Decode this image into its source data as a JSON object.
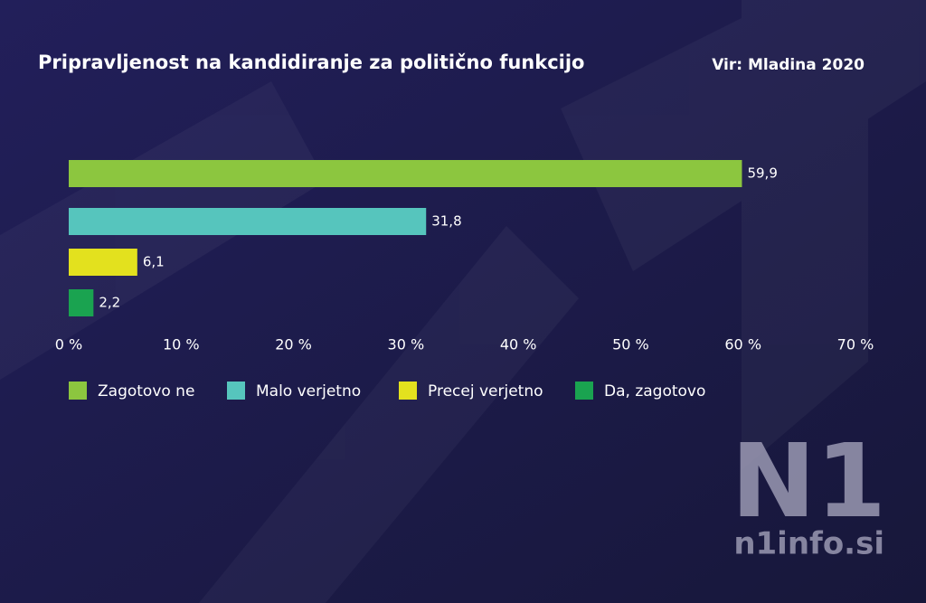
{
  "chart_data": {
    "type": "bar",
    "orientation": "horizontal",
    "title": "Pripravljenost na kandidiranje za politično funkcijo",
    "source": "Vir: Mladina 2020",
    "series": [
      {
        "name": "Zagotovo ne",
        "color": "#8cc63f",
        "values": [
          59.9
        ],
        "value_labels": [
          "59,9"
        ]
      },
      {
        "name": "Malo verjetno",
        "color": "#56c5bd",
        "values": [
          31.8
        ],
        "value_labels": [
          "31,8"
        ]
      },
      {
        "name": "Precej verjetno",
        "color": "#e3e11e",
        "values": [
          6.1
        ],
        "value_labels": [
          "6,1"
        ]
      },
      {
        "name": "Da, zagotovo",
        "color": "#1aa350",
        "values": [
          2.2
        ],
        "value_labels": [
          "2,2"
        ]
      }
    ],
    "xlim": [
      0,
      70
    ],
    "xticks": [
      {
        "value": 0,
        "label": "0 %"
      },
      {
        "value": 10,
        "label": "10 %"
      },
      {
        "value": 20,
        "label": "20 %"
      },
      {
        "value": 30,
        "label": "30 %"
      },
      {
        "value": 40,
        "label": "40 %"
      },
      {
        "value": 50,
        "label": "50 %"
      },
      {
        "value": 60,
        "label": "60 %"
      },
      {
        "value": 70,
        "label": "70 %"
      }
    ],
    "grid": false
  },
  "watermark": {
    "logo": "N1",
    "site": "n1info.si"
  }
}
